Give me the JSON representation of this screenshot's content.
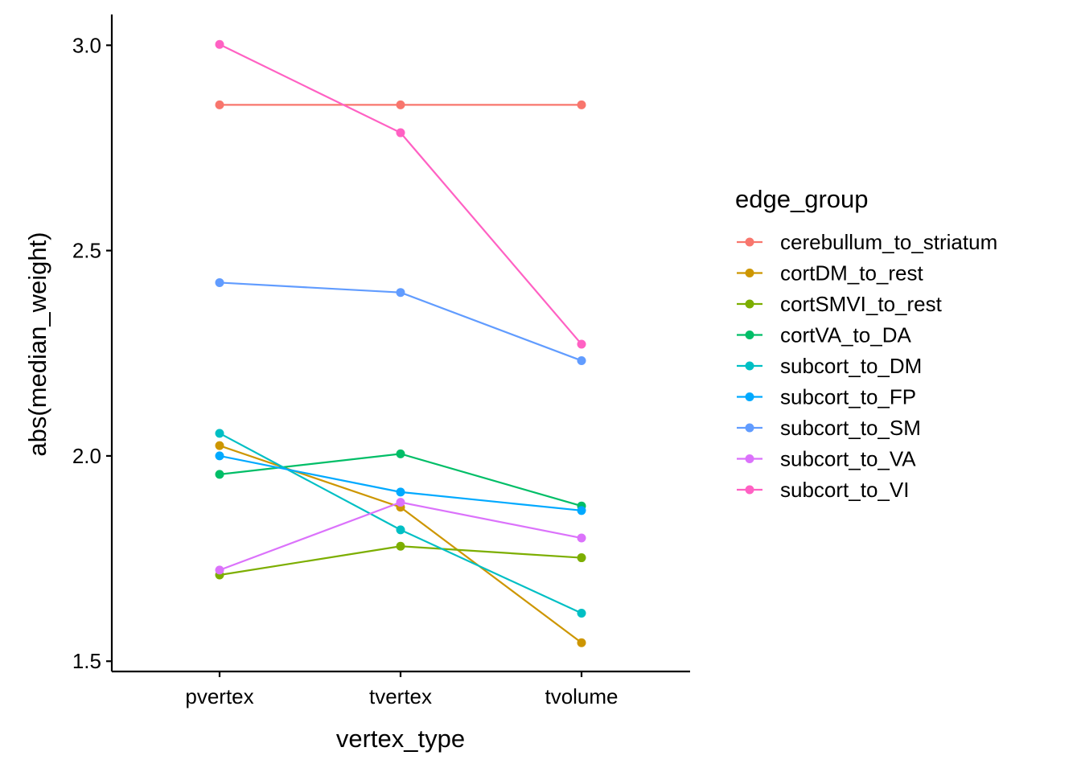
{
  "chart_data": {
    "type": "line",
    "xlabel": "vertex_type",
    "ylabel": "abs(median_weight)",
    "categories": [
      "pvertex",
      "tvertex",
      "tvolume"
    ],
    "ylim": [
      1.475,
      3.075
    ],
    "yticks": [
      1.5,
      2.0,
      2.5,
      3.0
    ],
    "ytick_labels": [
      "1.5",
      "2.0",
      "2.5",
      "3.0"
    ],
    "grid": false,
    "legend": {
      "title": "edge_group",
      "position": "right"
    },
    "series": [
      {
        "name": "cerebullum_to_striatum",
        "color": "#F8766D",
        "values": [
          2.855,
          2.855,
          2.855
        ]
      },
      {
        "name": "cortDM_to_rest",
        "color": "#CD9600",
        "values": [
          2.025,
          1.875,
          1.545
        ]
      },
      {
        "name": "cortSMVI_to_rest",
        "color": "#7CAE00",
        "values": [
          1.71,
          1.78,
          1.752
        ]
      },
      {
        "name": "cortVA_to_DA",
        "color": "#00BE67",
        "values": [
          1.955,
          2.005,
          1.878
        ]
      },
      {
        "name": "subcort_to_DM",
        "color": "#00BFC4",
        "values": [
          2.055,
          1.82,
          1.617
        ]
      },
      {
        "name": "subcort_to_FP",
        "color": "#00A9FF",
        "values": [
          2.0,
          1.912,
          1.867
        ]
      },
      {
        "name": "subcort_to_SM",
        "color": "#619CFF",
        "values": [
          2.422,
          2.398,
          2.232
        ]
      },
      {
        "name": "subcort_to_VA",
        "color": "#DB72FB",
        "values": [
          1.722,
          1.887,
          1.8
        ]
      },
      {
        "name": "subcort_to_VI",
        "color": "#FF61C3",
        "values": [
          3.002,
          2.787,
          2.272
        ]
      }
    ]
  }
}
